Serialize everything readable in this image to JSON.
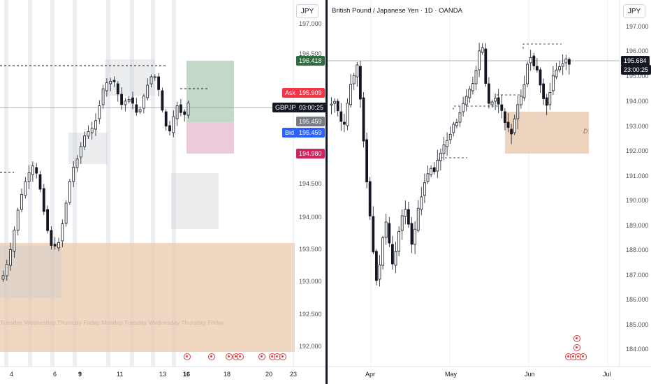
{
  "left_chart": {
    "currency_button": "JPY",
    "price_ticks": [
      "197.000",
      "196.500",
      "195.459",
      "194.500",
      "194.000",
      "193.500",
      "193.000",
      "192.500",
      "192.000"
    ],
    "x_ticks": [
      "4",
      "6",
      "9",
      "11",
      "13",
      "16",
      "18",
      "20",
      "23"
    ],
    "day_labels": "Tuesday Wednesday Thursday Friday   Monday Tuesday Wednesday Thursday Friday",
    "tags": {
      "target": "196.418",
      "ask_label": "Ask",
      "ask": "195.909",
      "symbol": "GBPJPY",
      "countdown": "03:00:25",
      "current": "195.459",
      "bid_label": "Bid",
      "bid": "195.459",
      "stop": "194.980"
    },
    "colors": {
      "target": "#2e6b3e",
      "ask": "#f23645",
      "symbol": "#131722",
      "current": "#787b86",
      "bid": "#2962ff",
      "stop": "#d0245f"
    }
  },
  "right_chart": {
    "currency_button": "JPY",
    "title": "British Pound / Japanese Yen · 1D · OANDA",
    "price_ticks": [
      "197.000",
      "196.000",
      "195.000",
      "194.000",
      "193.000",
      "192.000",
      "191.000",
      "190.000",
      "189.000",
      "188.000",
      "187.000",
      "186.000",
      "185.000",
      "184.000"
    ],
    "x_ticks": [
      "Apr",
      "May",
      "Jun",
      "Jul"
    ],
    "price_tag": "195.684",
    "countdown": "23:00:25",
    "zone_label": "D"
  }
}
